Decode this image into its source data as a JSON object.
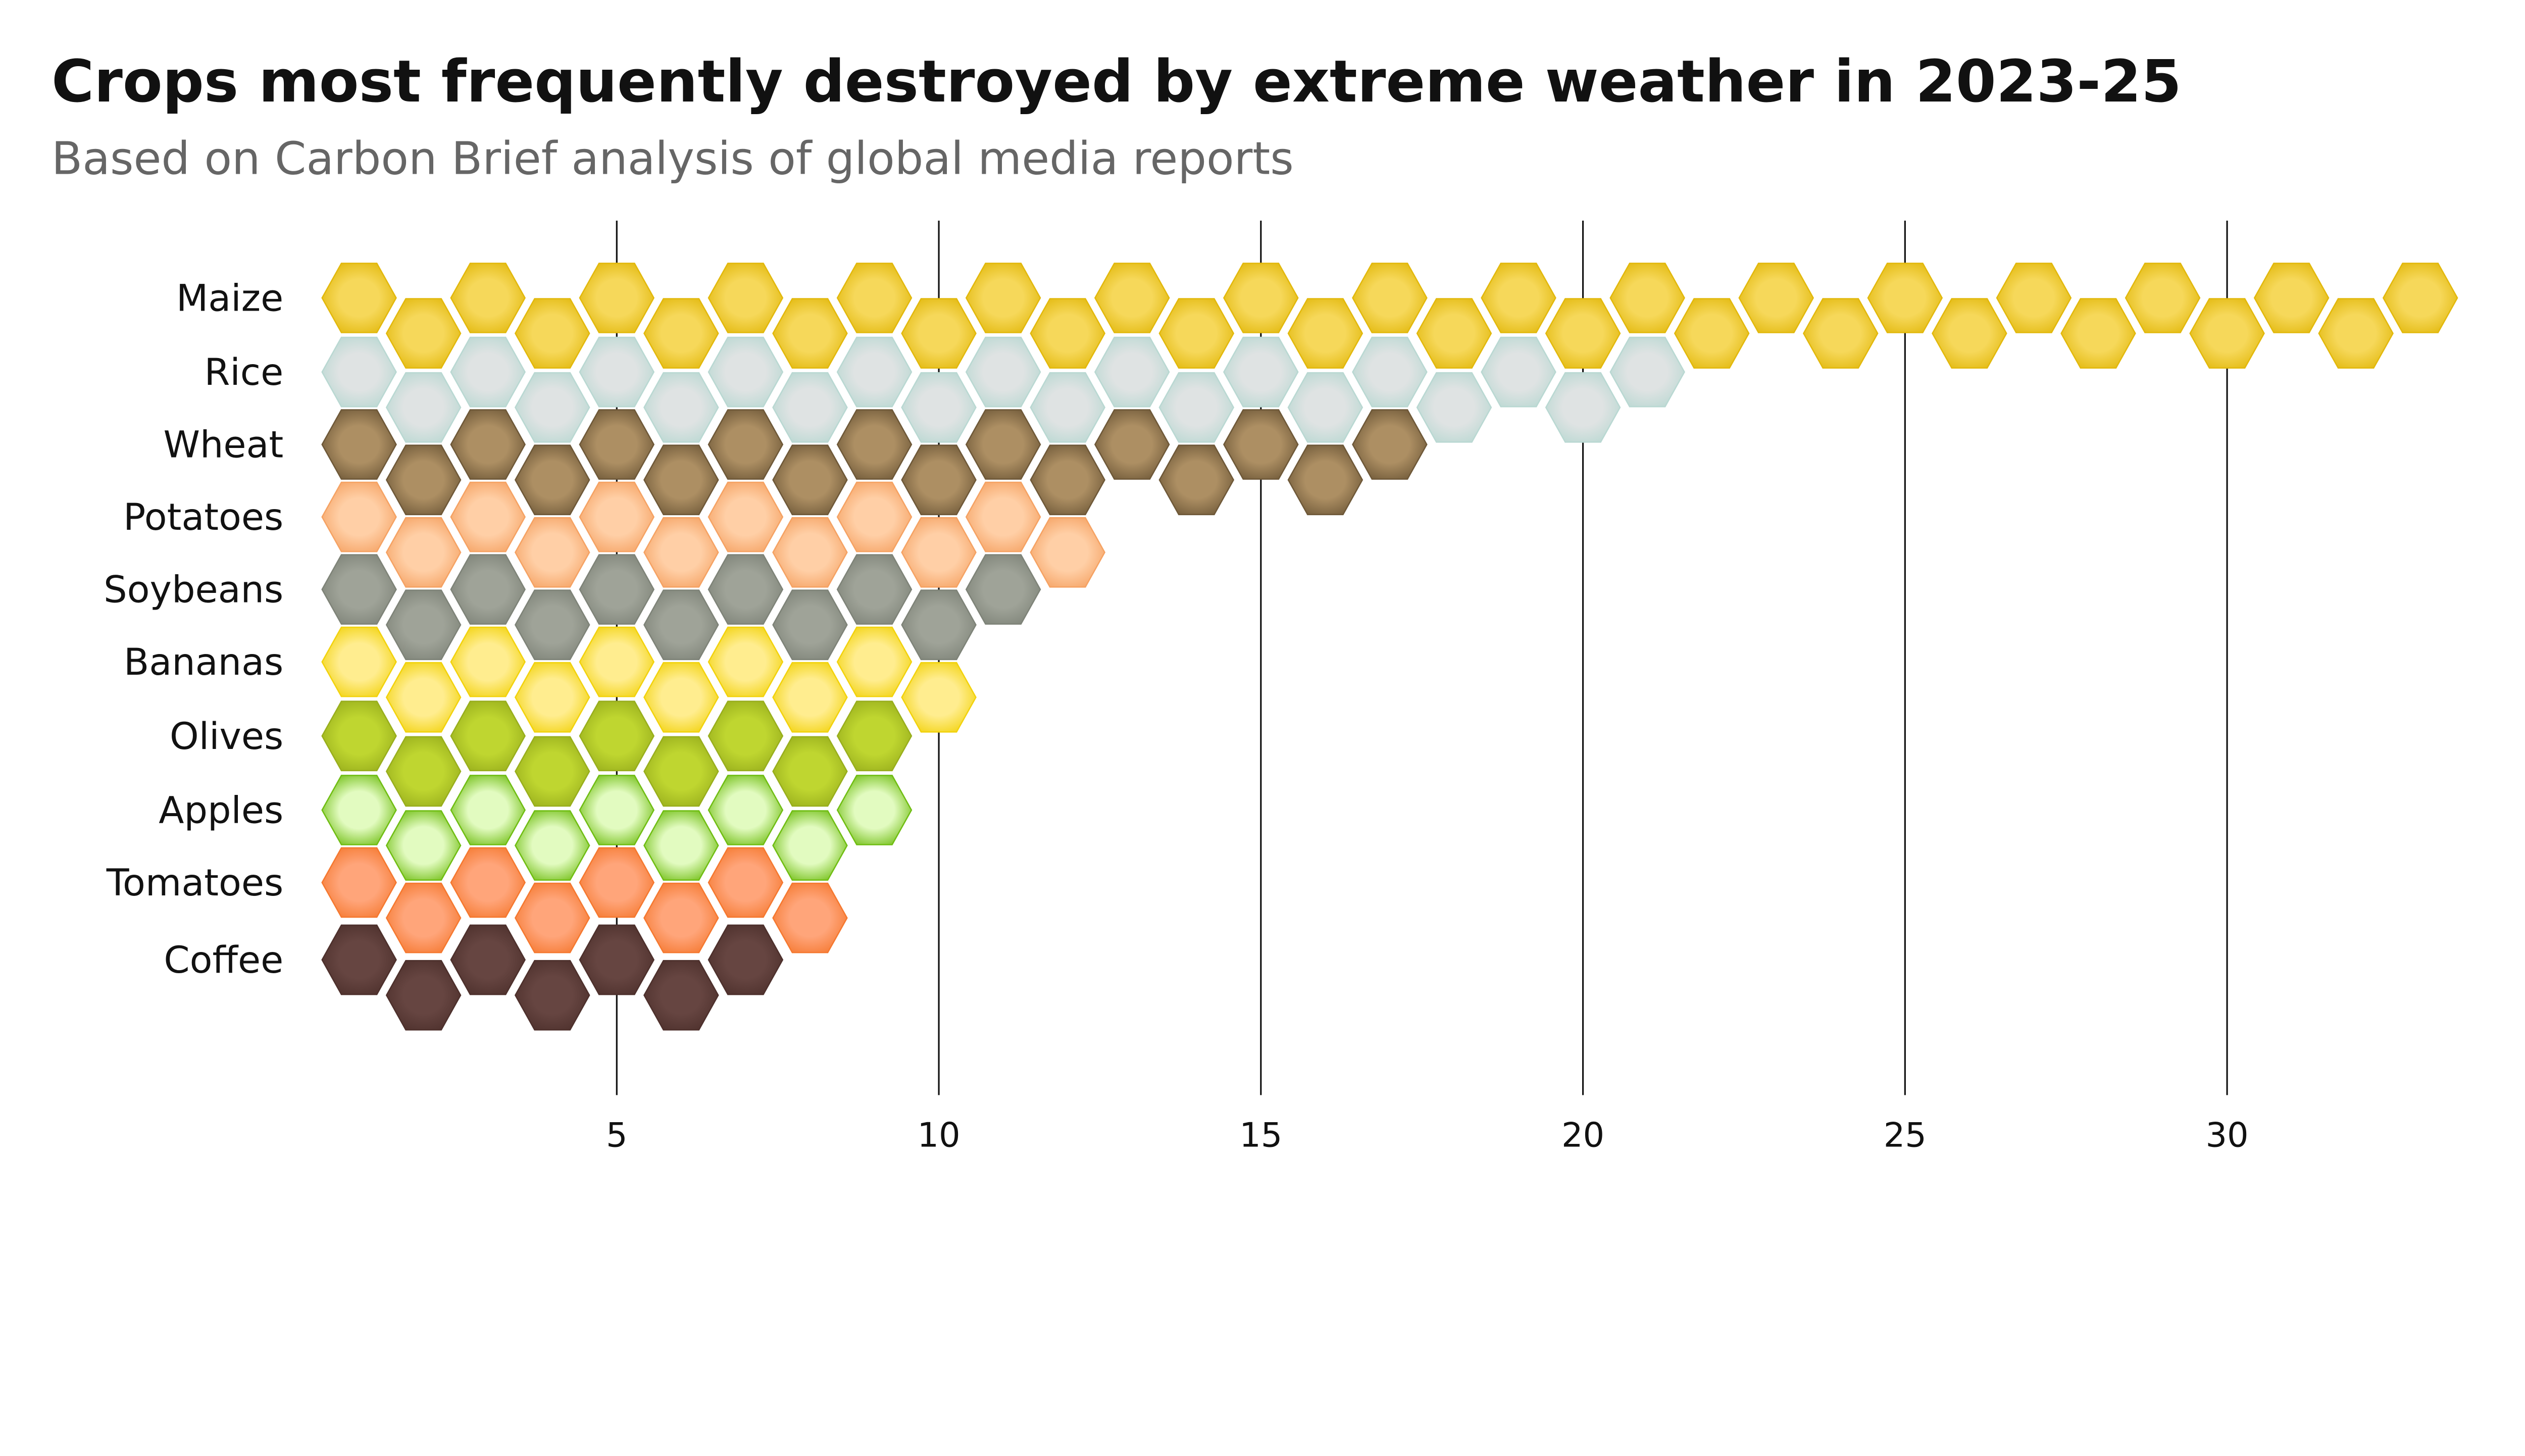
{
  "chart_data": {
    "type": "hexagon-pictogram-bar",
    "title": "Crops most frequently destroyed by extreme weather in 2023-25",
    "subtitle": "Based on Carbon Brief analysis of global media reports",
    "xlabel": "",
    "ylabel": "",
    "xlim": [
      0,
      34
    ],
    "xticks": [
      5,
      10,
      15,
      20,
      25,
      30
    ],
    "grid": "vertical",
    "categories": [
      "Maize",
      "Rice",
      "Wheat",
      "Potatoes",
      "Soybeans",
      "Bananas",
      "Olives",
      "Apples",
      "Tomatoes",
      "Coffee"
    ],
    "values": [
      33,
      21,
      17,
      12,
      11,
      10,
      9,
      9,
      8,
      7
    ],
    "colors": {
      "Maize": [
        "#f6d85a",
        "#e2b80c"
      ],
      "Rice": [
        "#dfe3e3",
        "#b9d8d2"
      ],
      "Wheat": [
        "#ad8f63",
        "#6e5838"
      ],
      "Potatoes": [
        "#ffcfa6",
        "#f5a263"
      ],
      "Soybeans": [
        "#9fa398",
        "#7e8378"
      ],
      "Bananas": [
        "#ffed8f",
        "#f2d20c"
      ],
      "Olives": [
        "#bfd630",
        "#98ae1c"
      ],
      "Apples": [
        "#e2fbc0",
        "#6fbd12"
      ],
      "Tomatoes": [
        "#ffa57a",
        "#f5782f"
      ],
      "Coffee": [
        "#664541",
        "#4d302c"
      ]
    }
  }
}
